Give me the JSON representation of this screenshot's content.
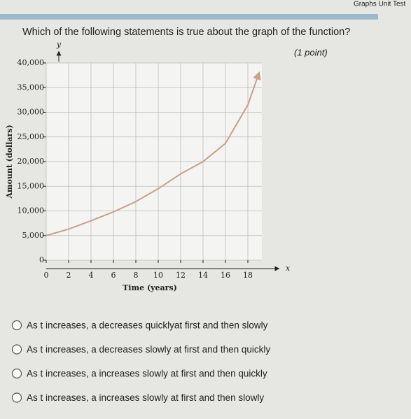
{
  "header": "Graphs Unit Test",
  "question": "Which of the following statements is true about the graph of the function?",
  "points": "(1 point)",
  "chart_data": {
    "type": "line",
    "y_label": "Amount (dollars)",
    "x_label": "Time (years)",
    "y_symbol": "y",
    "x_symbol": "x",
    "x": [
      0,
      2,
      4,
      6,
      8,
      10,
      12,
      14,
      16,
      18,
      19
    ],
    "values": [
      5000,
      6300,
      8000,
      9800,
      11900,
      14500,
      17500,
      20000,
      23700,
      31500,
      38000
    ],
    "color": "#c9a08a",
    "xlim": [
      0,
      20
    ],
    "xticks": [
      0,
      2,
      4,
      6,
      8,
      10,
      12,
      14,
      16,
      18
    ],
    "ylim": [
      0,
      40000
    ],
    "yticks": [
      0,
      {
        "value": 5000,
        "label": "5,000"
      },
      {
        "value": 10000,
        "label": "10,000"
      },
      {
        "value": 15000,
        "label": "15,000"
      },
      {
        "value": 20000,
        "label": "20,000"
      },
      {
        "value": 25000,
        "label": "25,000"
      },
      {
        "value": 30000,
        "label": "30,000"
      },
      {
        "value": 35000,
        "label": "35,000"
      },
      {
        "value": 40000,
        "label": "40,000"
      }
    ],
    "grid": true
  },
  "options": [
    "As t increases, a decreases quicklyat first and then slowly",
    "As t increases, a decreases slowly at first and then quickly",
    "As t increases, a increases slowly at first and then quickly",
    "As t increases, a increases slowly at first and then slowly"
  ]
}
